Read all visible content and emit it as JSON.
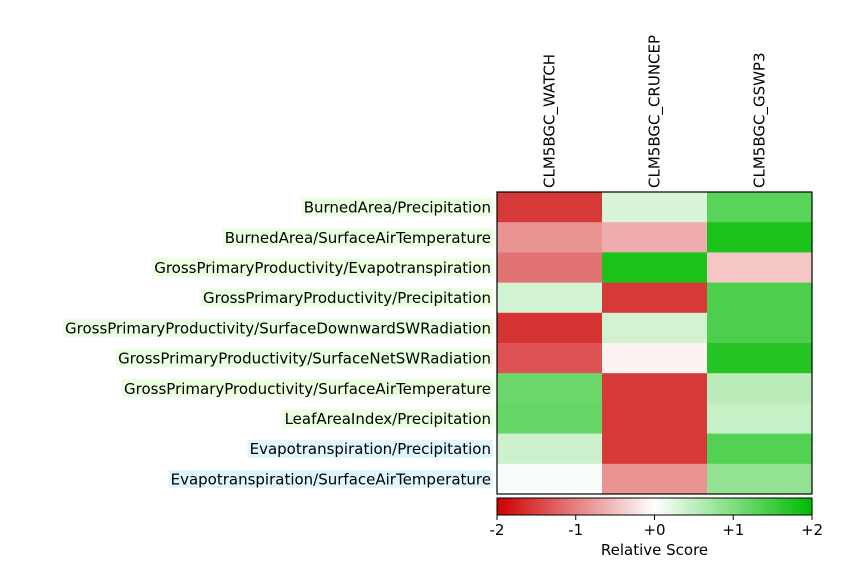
{
  "chart_data": {
    "type": "heatmap",
    "columns": [
      "CLM5BGC_WATCH",
      "CLM5BGC_CRUNCEP",
      "CLM5BGC_GSWP3"
    ],
    "rows": [
      {
        "label": "BurnedArea/Precipitation",
        "highlight": "#eaffe0",
        "values": [
          -1.55,
          0.3,
          1.3
        ]
      },
      {
        "label": "BurnedArea/SurfaceAirTemperature",
        "highlight": "#eaffe0",
        "values": [
          -0.85,
          -0.65,
          1.8
        ]
      },
      {
        "label": "GrossPrimaryProductivity/Evapotranspiration",
        "highlight": "#eaffe0",
        "values": [
          -1.1,
          1.8,
          -0.45
        ]
      },
      {
        "label": "GrossPrimaryProductivity/Precipitation",
        "highlight": "#eaffe0",
        "values": [
          0.35,
          -1.55,
          1.4
        ]
      },
      {
        "label": "GrossPrimaryProductivity/SurfaceDownwardSWRadiation",
        "highlight": "#eaffe0",
        "values": [
          -1.6,
          0.35,
          1.4
        ]
      },
      {
        "label": "GrossPrimaryProductivity/SurfaceNetSWRadiation",
        "highlight": "#eaffe0",
        "values": [
          -1.35,
          -0.1,
          1.7
        ]
      },
      {
        "label": "GrossPrimaryProductivity/SurfaceAirTemperature",
        "highlight": "#eaffe0",
        "values": [
          1.15,
          -1.55,
          0.55
        ]
      },
      {
        "label": "LeafAreaIndex/Precipitation",
        "highlight": "#eaffe0",
        "values": [
          1.2,
          -1.55,
          0.45
        ]
      },
      {
        "label": "Evapotranspiration/Precipitation",
        "highlight": "#e0f6ff",
        "values": [
          0.4,
          -1.55,
          1.35
        ]
      },
      {
        "label": "Evapotranspiration/SurfaceAirTemperature",
        "highlight": "#e0f6ff",
        "values": [
          0.05,
          -0.85,
          0.85
        ]
      }
    ],
    "colorbar": {
      "range": [
        -2,
        2
      ],
      "ticks": [
        -2,
        -1,
        0,
        1,
        2
      ],
      "tick_labels": [
        "-2",
        "-1",
        "+0",
        "+1",
        "+2"
      ],
      "label": "Relative Score",
      "colors": {
        "neg": "#cc0000",
        "mid": "#ffffff",
        "pos": "#00bb00"
      }
    }
  }
}
